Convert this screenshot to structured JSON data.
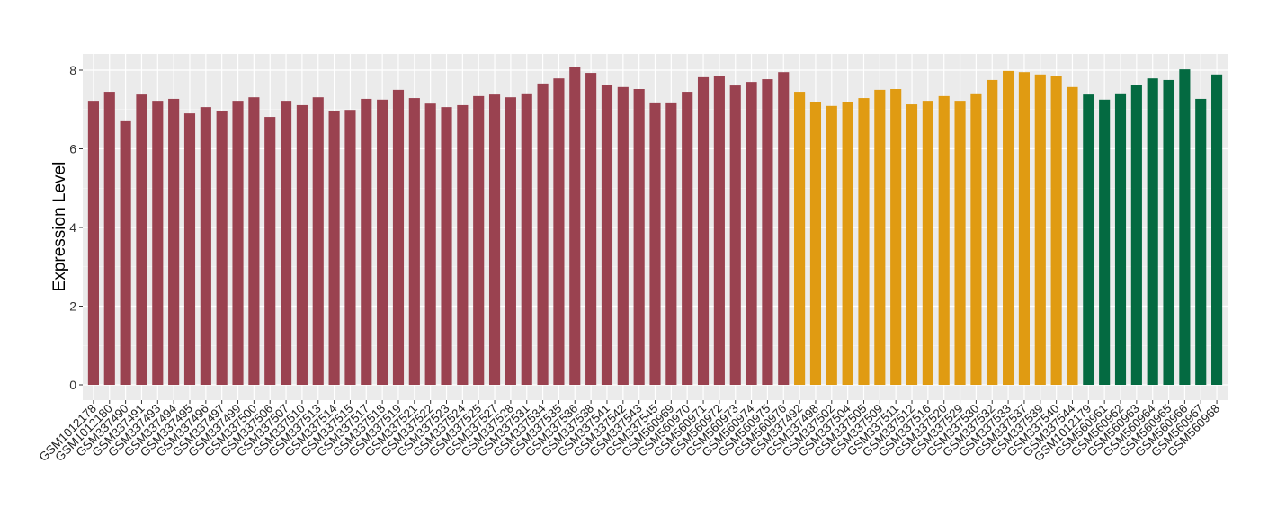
{
  "chart_data": {
    "type": "bar",
    "title": "",
    "xlabel": "",
    "ylabel": "Expression Level",
    "ylim": [
      0,
      8.3
    ],
    "yticks": [
      0,
      2,
      4,
      6,
      8
    ],
    "grid": true,
    "legend": "none",
    "colors": {
      "group1": "#9a4250",
      "group2": "#e09b12",
      "group3": "#046a41",
      "panel": "#ebebeb",
      "grid": "#ffffff"
    },
    "categories": [
      "GSM1012178",
      "GSM1012180",
      "GSM337490",
      "GSM337491",
      "GSM337493",
      "GSM337494",
      "GSM337495",
      "GSM337496",
      "GSM337497",
      "GSM337499",
      "GSM337500",
      "GSM337506",
      "GSM337507",
      "GSM337510",
      "GSM337513",
      "GSM337514",
      "GSM337515",
      "GSM337517",
      "GSM337518",
      "GSM337519",
      "GSM337521",
      "GSM337522",
      "GSM337523",
      "GSM337524",
      "GSM337525",
      "GSM337527",
      "GSM337528",
      "GSM337531",
      "GSM337534",
      "GSM337535",
      "GSM337536",
      "GSM337538",
      "GSM337541",
      "GSM337542",
      "GSM337543",
      "GSM337545",
      "GSM560969",
      "GSM560970",
      "GSM560971",
      "GSM560972",
      "GSM560973",
      "GSM560974",
      "GSM560975",
      "GSM560976",
      "GSM337492",
      "GSM337498",
      "GSM337502",
      "GSM337504",
      "GSM337505",
      "GSM337509",
      "GSM337511",
      "GSM337512",
      "GSM337516",
      "GSM337520",
      "GSM337529",
      "GSM337530",
      "GSM337532",
      "GSM337533",
      "GSM337537",
      "GSM337539",
      "GSM337540",
      "GSM337544",
      "GSM1012179",
      "GSM560961",
      "GSM560962",
      "GSM560963",
      "GSM560964",
      "GSM560965",
      "GSM560966",
      "GSM560967",
      "GSM560968"
    ],
    "values": [
      7.22,
      7.45,
      6.7,
      7.38,
      7.22,
      7.27,
      6.9,
      7.06,
      6.97,
      7.22,
      7.31,
      6.81,
      7.22,
      7.11,
      7.31,
      6.97,
      6.99,
      7.27,
      7.25,
      7.5,
      7.29,
      7.15,
      7.06,
      7.11,
      7.34,
      7.38,
      7.31,
      7.41,
      7.66,
      7.79,
      8.09,
      7.93,
      7.63,
      7.57,
      7.52,
      7.18,
      7.18,
      7.45,
      7.82,
      7.84,
      7.61,
      7.7,
      7.77,
      7.95,
      7.45,
      7.2,
      7.09,
      7.2,
      7.29,
      7.5,
      7.52,
      7.13,
      7.22,
      7.34,
      7.22,
      7.41,
      7.75,
      7.98,
      7.95,
      7.89,
      7.84,
      7.57,
      7.38,
      7.25,
      7.41,
      7.63,
      7.79,
      7.75,
      8.02,
      7.27,
      7.89
    ],
    "groups": [
      1,
      1,
      1,
      1,
      1,
      1,
      1,
      1,
      1,
      1,
      1,
      1,
      1,
      1,
      1,
      1,
      1,
      1,
      1,
      1,
      1,
      1,
      1,
      1,
      1,
      1,
      1,
      1,
      1,
      1,
      1,
      1,
      1,
      1,
      1,
      1,
      1,
      1,
      1,
      1,
      1,
      1,
      1,
      1,
      2,
      2,
      2,
      2,
      2,
      2,
      2,
      2,
      2,
      2,
      2,
      2,
      2,
      2,
      2,
      2,
      2,
      2,
      3,
      3,
      3,
      3,
      3,
      3,
      3,
      3,
      3
    ]
  }
}
